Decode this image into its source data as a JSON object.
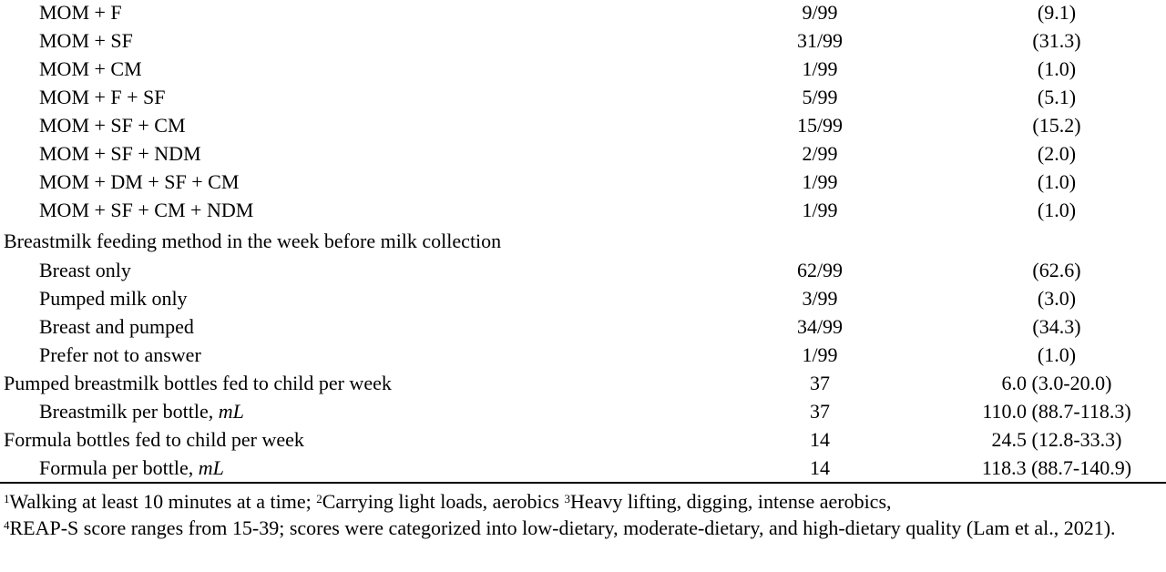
{
  "rows": [
    {
      "label": "MOM + F",
      "n": "9/99",
      "v": "(9.1)"
    },
    {
      "label": "MOM + SF",
      "n": "31/99",
      "v": "(31.3)"
    },
    {
      "label": "MOM + CM",
      "n": "1/99",
      "v": "(1.0)"
    },
    {
      "label": "MOM + F + SF",
      "n": "5/99",
      "v": "(5.1)"
    },
    {
      "label": "MOM + SF + CM",
      "n": "15/99",
      "v": "(15.2)"
    },
    {
      "label": "MOM + SF + NDM",
      "n": "2/99",
      "v": "(2.0)"
    },
    {
      "label": "MOM + DM + SF + CM",
      "n": "1/99",
      "v": "(1.0)"
    },
    {
      "label": "MOM + SF + CM + NDM",
      "n": "1/99",
      "v": "(1.0)"
    },
    {
      "label": "Breastmilk feeding method in the week before milk collection",
      "n": "",
      "v": ""
    },
    {
      "label": "Breast only",
      "n": "62/99",
      "v": "(62.6)"
    },
    {
      "label": "Pumped milk only",
      "n": "3/99",
      "v": "(3.0)"
    },
    {
      "label": "Breast and pumped",
      "n": "34/99",
      "v": "(34.3)"
    },
    {
      "label": "Prefer not to answer",
      "n": "1/99",
      "v": "(1.0)"
    },
    {
      "label": "Pumped breastmilk bottles fed to child per week",
      "n": "37",
      "v": "6.0 (3.0-20.0)"
    },
    {
      "label": "Breastmilk per bottle, ",
      "unit": "mL",
      "n": "37",
      "v": "110.0 (88.7-118.3)"
    },
    {
      "label": "Formula bottles fed to child per week",
      "n": "14",
      "v": "24.5 (12.8-33.3)"
    },
    {
      "label": "Formula per bottle, ",
      "unit": "mL",
      "n": "14",
      "v": "118.3 (88.7-140.9)"
    }
  ],
  "footnote": {
    "sup1": "1",
    "text1": "Walking at least 10 minutes at a time; ",
    "sup2": "2",
    "text2": "Carrying light loads, aerobics ",
    "sup3": "3",
    "text3": "Heavy lifting, digging, intense aerobics,",
    "sup4": "4",
    "text4": "REAP-S score ranges from 15-39; scores were categorized into low-dietary, moderate-dietary, and high-dietary quality (Lam et al., 2021)."
  }
}
